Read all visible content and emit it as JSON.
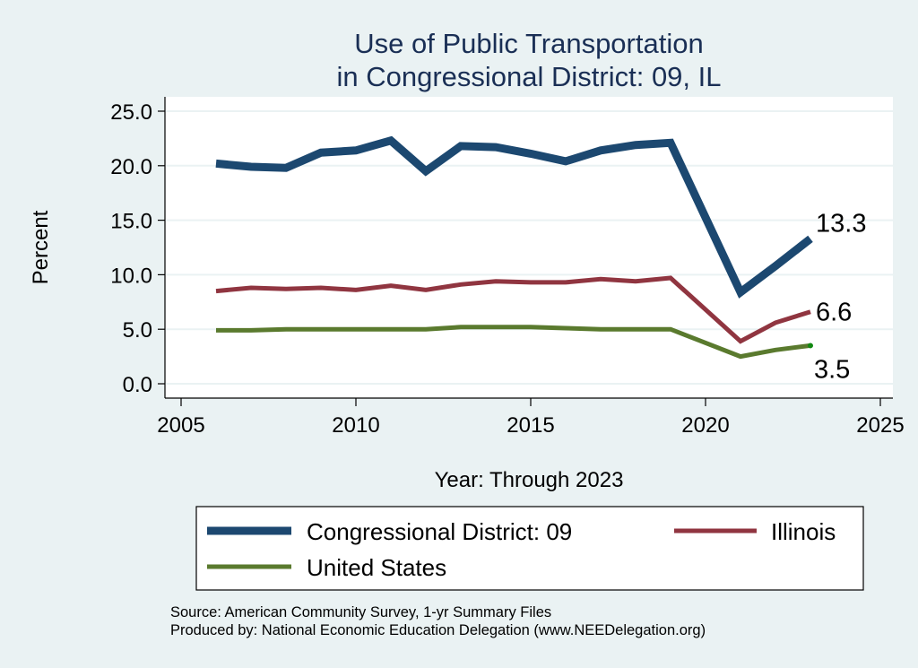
{
  "chart_data": {
    "type": "line",
    "title": [
      "Use of Public Transportation",
      "in Congressional District: 09, IL"
    ],
    "xlabel": "Year: Through 2023",
    "ylabel": "Percent",
    "xlim": [
      2005,
      2025
    ],
    "ylim": [
      0,
      25
    ],
    "x_ticks": [
      2005,
      2010,
      2015,
      2020,
      2025
    ],
    "x_tick_labels": [
      "2005",
      "2010",
      "2015",
      "2020",
      "2025"
    ],
    "y_ticks": [
      0,
      5,
      10,
      15,
      20,
      25
    ],
    "y_tick_labels": [
      "0.0",
      "5.0",
      "10.0",
      "15.0",
      "20.0",
      "25.0"
    ],
    "grid": true,
    "legend_position": "bottom",
    "x": [
      2006,
      2007,
      2008,
      2009,
      2010,
      2011,
      2012,
      2013,
      2014,
      2015,
      2016,
      2017,
      2018,
      2019,
      2021,
      2022,
      2023
    ],
    "series": [
      {
        "name": "Congressional District: 09",
        "color": "#1c4870",
        "values": [
          20.2,
          19.9,
          19.8,
          21.2,
          21.4,
          22.3,
          19.5,
          21.8,
          21.7,
          21.1,
          20.4,
          21.4,
          21.9,
          22.1,
          8.4,
          10.8,
          13.3
        ],
        "end_label": "13.3"
      },
      {
        "name": "Illinois",
        "color": "#903540",
        "values": [
          8.5,
          8.8,
          8.7,
          8.8,
          8.6,
          9.0,
          8.6,
          9.1,
          9.4,
          9.3,
          9.3,
          9.6,
          9.4,
          9.7,
          3.9,
          5.6,
          6.6
        ],
        "end_label": "6.6"
      },
      {
        "name": "United States",
        "color": "#5a7a2e",
        "values": [
          4.9,
          4.9,
          5.0,
          5.0,
          5.0,
          5.0,
          5.0,
          5.2,
          5.2,
          5.2,
          5.1,
          5.0,
          5.0,
          5.0,
          2.5,
          3.1,
          3.5
        ],
        "end_label": "3.5",
        "end_marker_color": "#118811"
      }
    ],
    "legend": [
      "Congressional District: 09",
      "Illinois",
      "United States"
    ],
    "notes": [
      "Source: American Community Survey, 1-yr Summary Files",
      "Produced by: National Economic Education Delegation (www.NEEDelegation.org)"
    ]
  }
}
